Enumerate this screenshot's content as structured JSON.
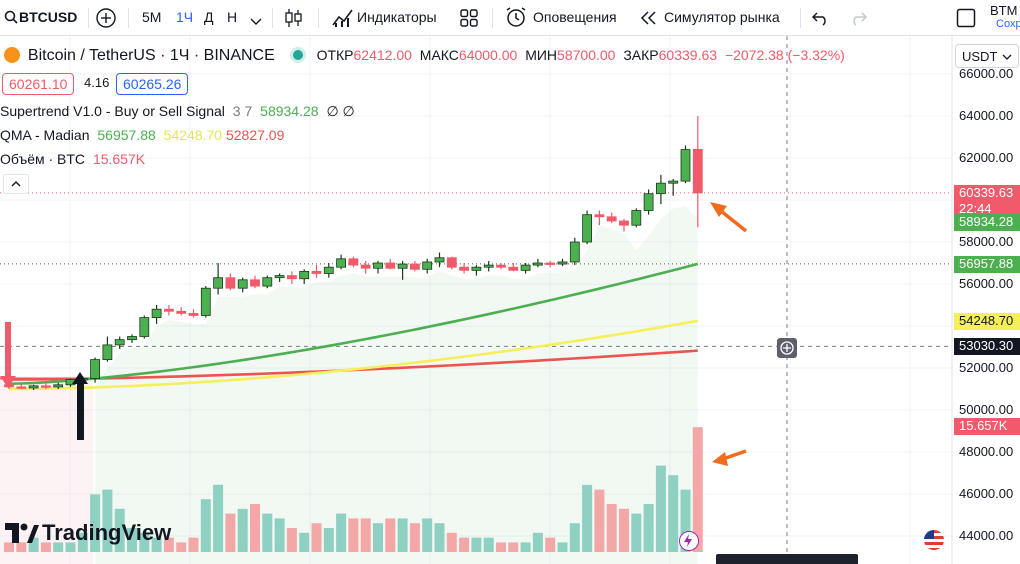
{
  "toolbar": {
    "symbol": "BTCUSD",
    "timeframes": [
      "5М",
      "1Ч",
      "Д",
      "Н"
    ],
    "active_timeframe": "1Ч",
    "indicators_label": "Индикаторы",
    "alerts_label": "Оповещения",
    "replay_label": "Симулятор рынка",
    "right_label_top": "BTM",
    "right_label_bottom": "Сохр"
  },
  "header": {
    "title": "Bitcoin / TetherUS · 1Ч · BINANCE",
    "o_label": "ОТКР",
    "o_value": "62412.00",
    "h_label": "МАКС",
    "h_value": "64000.00",
    "l_label": "МИН",
    "l_value": "58700.00",
    "c_label": "ЗАКР",
    "c_value": "60339.63",
    "change": "−2072.38 (−3.32%)",
    "sell_price": "60261.10",
    "spread": "4.16",
    "buy_price": "60265.26",
    "currency": "USDT"
  },
  "indicators": {
    "supertrend_name": "Supertrend V1.0 - Buy or Sell Signal",
    "supertrend_params": "3 7",
    "supertrend_value": "58934.28",
    "supertrend_extra": "∅ ∅",
    "qma_name": "QMA - Madian",
    "qma_v1": "56957.88",
    "qma_v2": "54248.70",
    "qma_v3": "52827.09",
    "volume_name": "Объём · BTC",
    "volume_value": "15.657K"
  },
  "brand": {
    "watermark": "TradingView"
  },
  "colors": {
    "up": "#4caf50",
    "down": "#f05a6a",
    "up_vol": "#8ed1c3",
    "down_vol": "#f4a7a7",
    "qma_green": "#4caf50",
    "qma_yellow": "#f5f05a",
    "qma_red": "#ef5350",
    "accent": "#2962ff",
    "arrow": "#f36b1c"
  },
  "chart_data": {
    "type": "candlestick",
    "y_ticks": [
      66000,
      64000,
      62000,
      60000,
      58000,
      56000,
      54000,
      52000,
      50000,
      48000,
      46000,
      44000
    ],
    "price_labels": [
      {
        "value": "60339.63",
        "sub": "22:44",
        "color": "#f05a6a"
      },
      {
        "value": "58934.28",
        "color": "#4caf50"
      },
      {
        "value": "56957.88",
        "color": "#4caf50"
      },
      {
        "value": "54248.70",
        "color": "#f5f05a"
      },
      {
        "value": "53030.30",
        "color": "#131722"
      },
      {
        "value": "15.657K",
        "color": "#f05a6a"
      }
    ],
    "ohlc": [
      [
        51200,
        51400,
        51000,
        51100
      ],
      [
        51100,
        51300,
        51000,
        51050
      ],
      [
        51050,
        51200,
        50950,
        51150
      ],
      [
        51150,
        51350,
        51000,
        51100
      ],
      [
        51100,
        51300,
        51000,
        51200
      ],
      [
        51200,
        51500,
        51100,
        51450
      ],
      [
        51450,
        51600,
        51300,
        51500
      ],
      [
        51500,
        52500,
        51300,
        52400
      ],
      [
        52400,
        53500,
        52300,
        53100
      ],
      [
        53100,
        53500,
        52900,
        53350
      ],
      [
        53350,
        53600,
        53200,
        53500
      ],
      [
        53500,
        54500,
        53400,
        54400
      ],
      [
        54400,
        55000,
        54100,
        54800
      ],
      [
        54800,
        55000,
        54500,
        54700
      ],
      [
        54700,
        54900,
        54500,
        54600
      ],
      [
        54600,
        54800,
        54400,
        54500
      ],
      [
        54500,
        55900,
        54400,
        55800
      ],
      [
        55800,
        57000,
        55500,
        56300
      ],
      [
        56300,
        56500,
        55700,
        55800
      ],
      [
        55800,
        56300,
        55600,
        56200
      ],
      [
        56200,
        56400,
        55800,
        55900
      ],
      [
        55900,
        56400,
        55800,
        56300
      ],
      [
        56300,
        56500,
        56100,
        56400
      ],
      [
        56400,
        56600,
        56000,
        56250
      ],
      [
        56250,
        56700,
        56000,
        56600
      ],
      [
        56600,
        56900,
        56300,
        56500
      ],
      [
        56500,
        57000,
        56300,
        56800
      ],
      [
        56800,
        57400,
        56700,
        57200
      ],
      [
        57200,
        57300,
        56800,
        56900
      ],
      [
        56900,
        57100,
        56500,
        56750
      ],
      [
        56750,
        57100,
        56500,
        57000
      ],
      [
        57000,
        57200,
        56700,
        56750
      ],
      [
        56750,
        57100,
        56200,
        56950
      ],
      [
        56950,
        57100,
        56600,
        56700
      ],
      [
        56700,
        57200,
        56500,
        57050
      ],
      [
        57050,
        57500,
        56800,
        57250
      ],
      [
        57250,
        57300,
        56700,
        56800
      ],
      [
        56800,
        57000,
        56500,
        56650
      ],
      [
        56650,
        56900,
        56400,
        56800
      ],
      [
        56800,
        57100,
        56600,
        56900
      ],
      [
        56900,
        57000,
        56700,
        56800
      ],
      [
        56800,
        57000,
        56600,
        56650
      ],
      [
        56650,
        57000,
        56500,
        56900
      ],
      [
        56900,
        57200,
        56800,
        57000
      ],
      [
        57000,
        57100,
        56800,
        56950
      ],
      [
        56950,
        57200,
        56850,
        57050
      ],
      [
        57050,
        58200,
        56900,
        58000
      ],
      [
        58000,
        59500,
        57900,
        59300
      ],
      [
        59300,
        59500,
        58800,
        59200
      ],
      [
        59200,
        59400,
        58900,
        59000
      ],
      [
        59000,
        59100,
        58500,
        58800
      ],
      [
        58800,
        59600,
        58700,
        59500
      ],
      [
        59500,
        60500,
        59300,
        60300
      ],
      [
        60300,
        61200,
        59800,
        60800
      ],
      [
        60800,
        61000,
        60200,
        60900
      ],
      [
        60900,
        62600,
        60800,
        62400
      ],
      [
        62412,
        64000,
        58700,
        60339.63
      ]
    ],
    "volume": [
      2,
      2,
      3,
      2,
      2,
      2,
      4,
      12,
      13,
      9,
      5,
      4,
      3,
      3,
      2,
      3,
      11,
      14,
      8,
      9,
      10,
      8,
      7,
      5,
      4,
      6,
      5,
      8,
      7,
      7,
      6,
      7,
      7,
      6,
      7,
      6,
      4,
      3,
      3,
      3,
      2,
      2,
      2,
      4,
      3,
      2,
      6,
      14,
      13,
      10,
      9,
      8,
      10,
      18,
      16,
      13,
      26
    ],
    "qma_green": {
      "start": 51250,
      "end": 56957.88
    },
    "qma_yellow": {
      "start": 51000,
      "end": 54248.7
    },
    "qma_red": {
      "start": 51450,
      "end": 52827.09
    },
    "supertrend_last": 58934.28,
    "crosshair_price": 53030.3,
    "y_range": [
      44000,
      66000
    ]
  }
}
